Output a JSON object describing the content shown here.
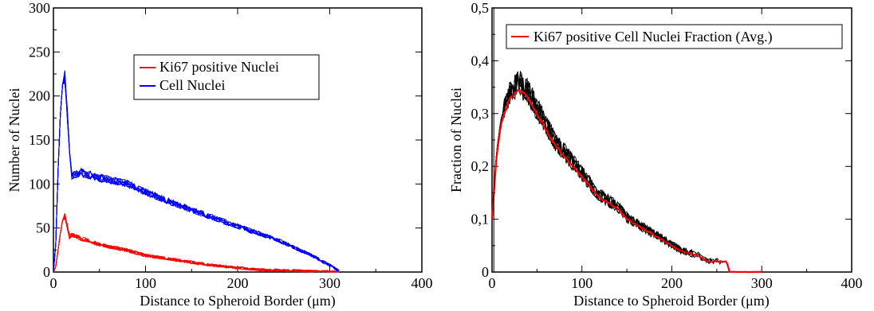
{
  "chart_data": [
    {
      "type": "line",
      "xlabel": "Distance to Spheroid Border (μm)",
      "ylabel": "Number of Nuclei",
      "xlim": [
        0,
        400
      ],
      "ylim": [
        0,
        300
      ],
      "xticks": [
        "0",
        "100",
        "200",
        "300",
        "400"
      ],
      "yticks": [
        "0",
        "50",
        "100",
        "150",
        "200",
        "250",
        "300"
      ],
      "legend_position": "upper-center",
      "series": [
        {
          "name": "Ki67 positive Nuclei",
          "color": "#ff0000",
          "x": [
            0,
            3,
            6,
            9,
            12,
            15,
            18,
            20,
            30,
            50,
            80,
            100,
            130,
            160,
            190,
            220,
            250,
            280,
            300,
            312
          ],
          "y": [
            0,
            8,
            35,
            58,
            70,
            55,
            40,
            45,
            40,
            33,
            26,
            20,
            15,
            10,
            6,
            3,
            2,
            1,
            0.5,
            0
          ]
        },
        {
          "name": "Cell Nuclei",
          "color": "#0000ff",
          "x": [
            0,
            3,
            6,
            9,
            12,
            15,
            18,
            20,
            30,
            50,
            80,
            100,
            130,
            160,
            190,
            220,
            250,
            280,
            300,
            312
          ],
          "y": [
            0,
            40,
            160,
            215,
            240,
            190,
            130,
            115,
            118,
            112,
            105,
            95,
            82,
            70,
            58,
            47,
            35,
            20,
            8,
            0
          ]
        }
      ]
    },
    {
      "type": "line",
      "xlabel": "Distance to Spheroid Border (μm)",
      "ylabel": "Fraction of Nuclei",
      "xlim": [
        0,
        400
      ],
      "ylim": [
        0,
        0.5
      ],
      "xticks": [
        "0",
        "100",
        "200",
        "300",
        "400"
      ],
      "yticks": [
        "0",
        "0,1",
        "0,2",
        "0,3",
        "0,4",
        "0,5"
      ],
      "legend_position": "top",
      "series": [
        {
          "name": "Ki67 positive Cell Nuclei Fraction (Avg.)",
          "color": "#ff0000",
          "x": [
            0,
            5,
            10,
            20,
            30,
            40,
            50,
            60,
            70,
            80,
            90,
            100,
            110,
            120,
            130,
            140,
            150,
            160,
            170,
            180,
            190,
            200,
            210,
            220,
            230,
            240,
            250,
            260,
            262,
            264,
            300
          ],
          "y": [
            0.1,
            0.22,
            0.28,
            0.33,
            0.345,
            0.33,
            0.3,
            0.27,
            0.24,
            0.22,
            0.2,
            0.18,
            0.16,
            0.14,
            0.13,
            0.12,
            0.1,
            0.09,
            0.08,
            0.07,
            0.06,
            0.05,
            0.04,
            0.035,
            0.03,
            0.02,
            0.02,
            0.02,
            0.015,
            0,
            0
          ]
        },
        {
          "name": "",
          "color": "#000000",
          "x": [
            0,
            5,
            10,
            20,
            30,
            40,
            50,
            60,
            70,
            80,
            90,
            100,
            110,
            120,
            130,
            140,
            150,
            160,
            170,
            180,
            190,
            200,
            210,
            220,
            230,
            240,
            250,
            260,
            262,
            264,
            300
          ],
          "y": [
            0.1,
            0.22,
            0.28,
            0.33,
            0.345,
            0.33,
            0.3,
            0.27,
            0.24,
            0.22,
            0.2,
            0.18,
            0.16,
            0.14,
            0.13,
            0.12,
            0.1,
            0.09,
            0.08,
            0.07,
            0.06,
            0.05,
            0.04,
            0.035,
            0.03,
            0.02,
            0.02,
            0.02,
            0.015,
            0,
            0
          ]
        }
      ]
    }
  ]
}
